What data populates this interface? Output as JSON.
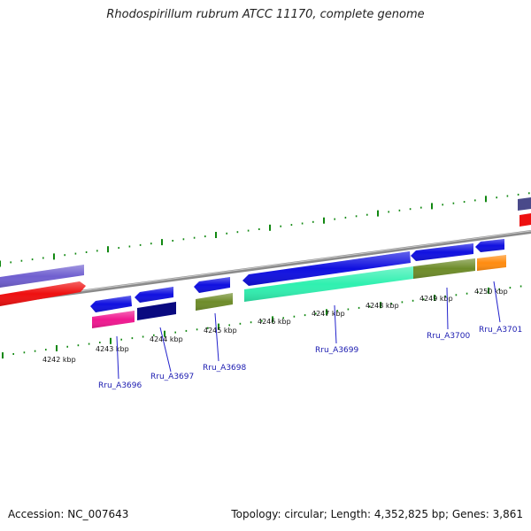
{
  "title": "Rhodospirillum rubrum ATCC 11170, complete genome",
  "footer": {
    "accession": "Accession: NC_007643",
    "stats": "Topology: circular; Length: 4,352,825 bp; Genes: 3,861"
  },
  "kbp_labels": [
    "4242 kbp",
    "4243 kbp",
    "4244 kbp",
    "4245 kbp",
    "4246 kbp",
    "4247 kbp",
    "4248 kbp",
    "4249 kbp",
    "4250 kbp"
  ],
  "gene_labels": [
    "Rru_A3696",
    "Rru_A3697",
    "Rru_A3698",
    "Rru_A3699",
    "Rru_A3700",
    "Rru_A3701"
  ],
  "colors": {
    "blue": "#1010e0",
    "navy": "#0a0a80",
    "pink": "#f01890",
    "olive": "#6e8c2a",
    "mint": "#30f0b0",
    "orange": "#ff8c10",
    "purple": "#7060d0",
    "red": "#ee1010",
    "tick": "#118811",
    "backbone": "#8a8a8a",
    "label": "#1a1ab0"
  }
}
